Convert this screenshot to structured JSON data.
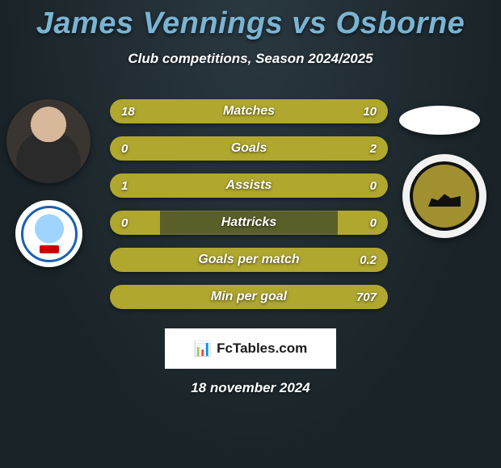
{
  "title_color": "#7ab4d4",
  "title": "James Vennings vs Osborne",
  "subtitle": "Club competitions, Season 2024/2025",
  "bar_track_color": "#5a5f2a",
  "bar_fill_color": "#b0a72e",
  "bars": [
    {
      "label": "Matches",
      "left": "18",
      "right": "10",
      "left_pct": 64,
      "right_pct": 36
    },
    {
      "label": "Goals",
      "left": "0",
      "right": "2",
      "left_pct": 18,
      "right_pct": 82
    },
    {
      "label": "Assists",
      "left": "1",
      "right": "0",
      "left_pct": 82,
      "right_pct": 18
    },
    {
      "label": "Hattricks",
      "left": "0",
      "right": "0",
      "left_pct": 18,
      "right_pct": 18
    },
    {
      "label": "Goals per match",
      "left": "",
      "right": "0.2",
      "left_pct": 18,
      "right_pct": 82
    },
    {
      "label": "Min per goal",
      "left": "",
      "right": "707",
      "left_pct": 18,
      "right_pct": 82
    }
  ],
  "watermark": "FcTables.com",
  "date": "18 november 2024"
}
